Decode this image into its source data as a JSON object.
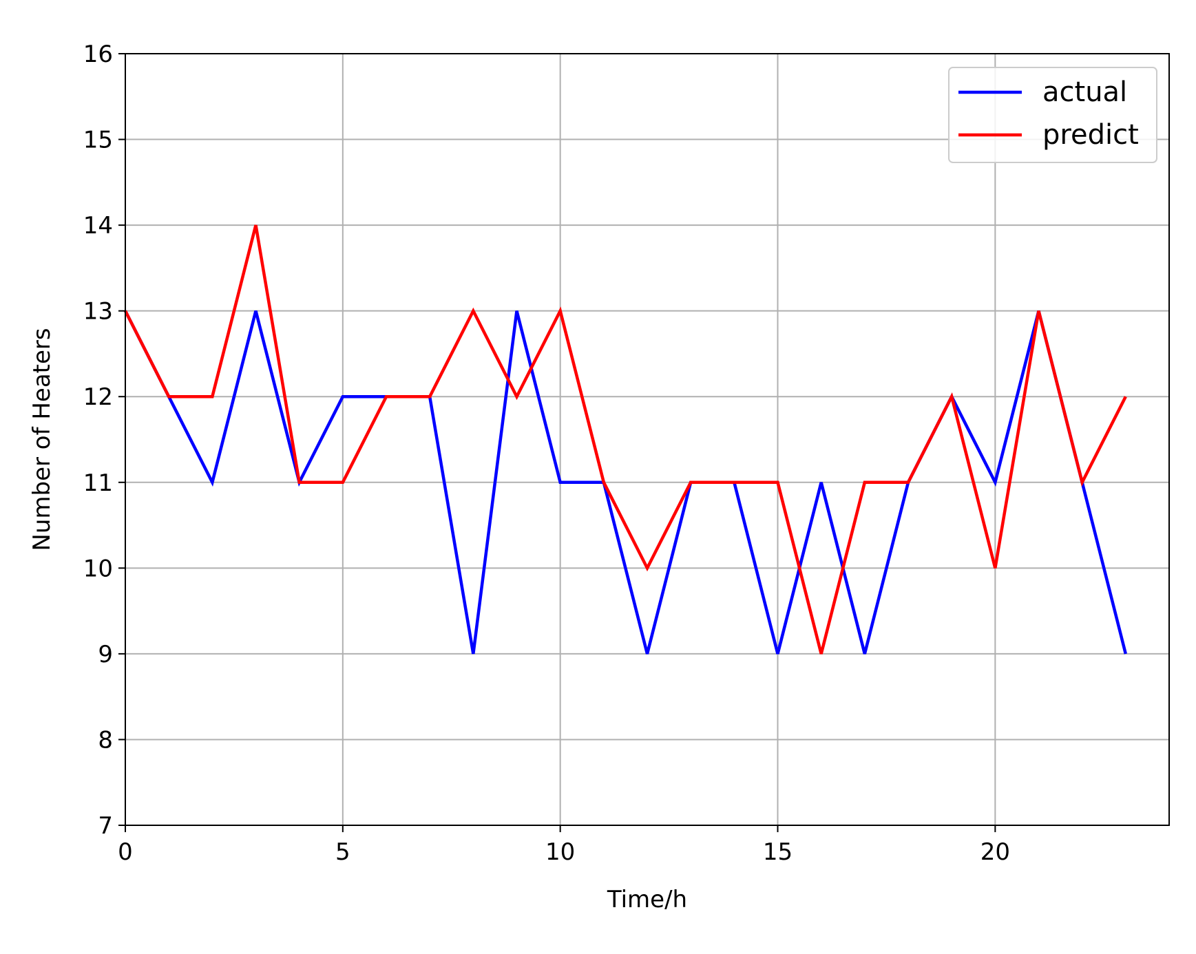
{
  "chart_data": {
    "type": "line",
    "xlabel": "Time/h",
    "ylabel": "Number of Heaters",
    "xlim": [
      0,
      24
    ],
    "ylim": [
      7,
      16
    ],
    "xticks": [
      0,
      5,
      10,
      15,
      20
    ],
    "yticks": [
      7,
      8,
      9,
      10,
      11,
      12,
      13,
      14,
      15,
      16
    ],
    "grid": true,
    "legend_position": "top-right",
    "x": [
      0,
      1,
      2,
      3,
      4,
      5,
      6,
      7,
      8,
      9,
      10,
      11,
      12,
      13,
      14,
      15,
      16,
      17,
      18,
      19,
      20,
      21,
      22,
      23
    ],
    "series": [
      {
        "name": "actual",
        "color": "#0000ff",
        "values": [
          13,
          12,
          11,
          13,
          11,
          12,
          12,
          12,
          9,
          13,
          11,
          11,
          9,
          11,
          11,
          9,
          11,
          9,
          11,
          12,
          11,
          13,
          11,
          9
        ]
      },
      {
        "name": "predict",
        "color": "#ff0000",
        "values": [
          13,
          12,
          12,
          14,
          11,
          11,
          12,
          12,
          13,
          12,
          13,
          11,
          10,
          11,
          11,
          11,
          9,
          11,
          11,
          12,
          10,
          13,
          11,
          12
        ]
      }
    ]
  }
}
